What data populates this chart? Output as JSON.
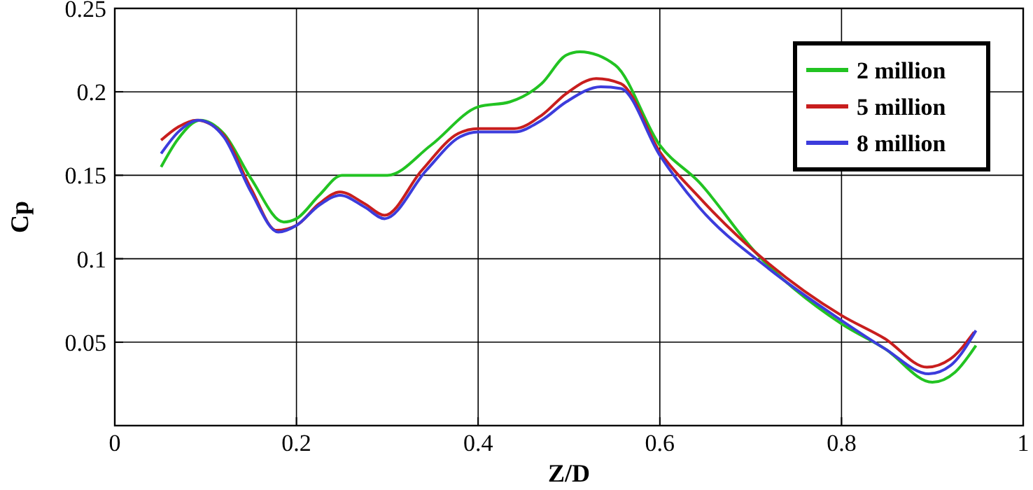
{
  "chart_data": {
    "type": "line",
    "xlabel": "Z/D",
    "ylabel": "Cp",
    "xlim": [
      0,
      1
    ],
    "ylim": [
      0,
      0.25
    ],
    "xticks": [
      0,
      0.2,
      0.4,
      0.6,
      0.8,
      1
    ],
    "yticks": [
      {
        "value": 0,
        "label": null
      },
      0.05,
      0.1,
      0.15,
      0.2,
      0.25
    ],
    "grid": true,
    "legend": "top right",
    "series": [
      {
        "name": "2 million",
        "color": "#22c322",
        "x": [
          0.051,
          0.07,
          0.094,
          0.12,
          0.15,
          0.186,
          0.2,
          0.225,
          0.25,
          0.3,
          0.348,
          0.4,
          0.435,
          0.47,
          0.497,
          0.512,
          0.551,
          0.6,
          0.643,
          0.705,
          0.8,
          0.848,
          0.9,
          0.925,
          0.948
        ],
        "values": [
          0.155,
          0.172,
          0.183,
          0.175,
          0.148,
          0.122,
          0.124,
          0.138,
          0.15,
          0.15,
          0.168,
          0.191,
          0.194,
          0.205,
          0.222,
          0.224,
          0.216,
          0.168,
          0.146,
          0.104,
          0.061,
          0.046,
          0.026,
          0.032,
          0.048
        ]
      },
      {
        "name": "5 million",
        "color": "#c81e1e",
        "x": [
          0.051,
          0.07,
          0.09,
          0.12,
          0.15,
          0.178,
          0.2,
          0.225,
          0.248,
          0.275,
          0.297,
          0.338,
          0.378,
          0.4,
          0.44,
          0.47,
          0.497,
          0.53,
          0.557,
          0.6,
          0.643,
          0.72,
          0.8,
          0.848,
          0.894,
          0.92,
          0.946
        ],
        "values": [
          0.171,
          0.179,
          0.183,
          0.174,
          0.142,
          0.117,
          0.12,
          0.133,
          0.14,
          0.133,
          0.126,
          0.153,
          0.175,
          0.178,
          0.178,
          0.186,
          0.199,
          0.208,
          0.205,
          0.164,
          0.137,
          0.097,
          0.066,
          0.052,
          0.035,
          0.04,
          0.056
        ]
      },
      {
        "name": "8 million",
        "color": "#3c3cdc",
        "x": [
          0.051,
          0.07,
          0.092,
          0.12,
          0.15,
          0.18,
          0.2,
          0.225,
          0.248,
          0.275,
          0.297,
          0.343,
          0.38,
          0.4,
          0.44,
          0.47,
          0.497,
          0.535,
          0.557,
          0.6,
          0.643,
          0.72,
          0.8,
          0.848,
          0.896,
          0.92,
          0.948
        ],
        "values": [
          0.163,
          0.176,
          0.183,
          0.173,
          0.14,
          0.116,
          0.12,
          0.132,
          0.138,
          0.131,
          0.124,
          0.153,
          0.173,
          0.176,
          0.176,
          0.183,
          0.194,
          0.203,
          0.202,
          0.162,
          0.131,
          0.094,
          0.063,
          0.046,
          0.031,
          0.036,
          0.057
        ]
      }
    ]
  }
}
